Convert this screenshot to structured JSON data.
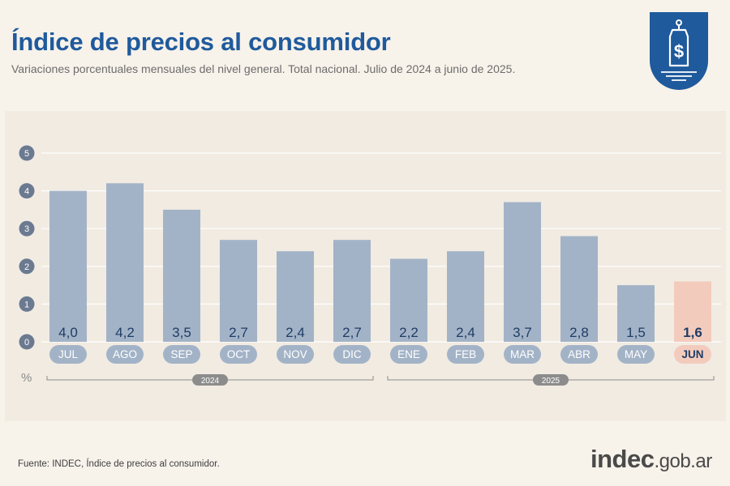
{
  "header": {
    "title": "Índice de precios al consumidor",
    "subtitle": "Variaciones porcentuales mensuales del nivel general. Total nacional. Julio de 2024 a junio de 2025."
  },
  "logo": {
    "icon": "price-tag-dollar-icon",
    "color": "#1f5a9c"
  },
  "footer": {
    "source": "Fuente: INDEC, Índice de precios al consumidor.",
    "brand_main": "indec",
    "brand_suffix": ".gob.ar"
  },
  "colors": {
    "bar": "#a3b3c7",
    "bar_highlight": "#f3cbbd",
    "label": "#1f3d66",
    "axis_badge": "#6b7a90"
  },
  "chart_data": {
    "type": "bar",
    "categories": [
      "JUL",
      "AGO",
      "SEP",
      "OCT",
      "NOV",
      "DIC",
      "ENE",
      "FEB",
      "MAR",
      "ABR",
      "MAY",
      "JUN"
    ],
    "values": [
      4.0,
      4.2,
      3.5,
      2.7,
      2.4,
      2.7,
      2.2,
      2.4,
      3.7,
      2.8,
      1.5,
      1.6
    ],
    "value_labels": [
      "4,0",
      "4,2",
      "3,5",
      "2,7",
      "2,4",
      "2,7",
      "2,2",
      "2,4",
      "3,7",
      "2,8",
      "1,5",
      "1,6"
    ],
    "highlight_index": 11,
    "ylabel": "%",
    "yticks": [
      "0",
      "1",
      "2",
      "3",
      "4",
      "5"
    ],
    "ylim": [
      0,
      5
    ],
    "grid": true,
    "year_groups": [
      {
        "label": "2024",
        "start": 0,
        "end": 5
      },
      {
        "label": "2025",
        "start": 6,
        "end": 11
      }
    ]
  }
}
